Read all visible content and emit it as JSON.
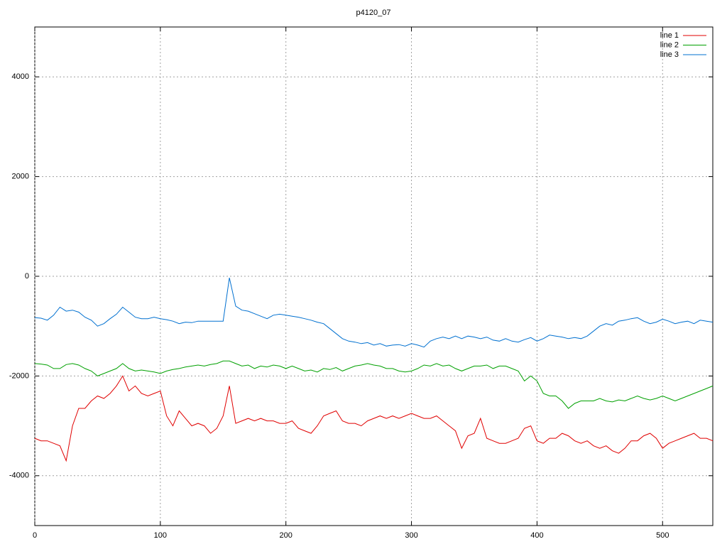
{
  "chart_data": {
    "type": "line",
    "title": "p4120_07",
    "x": [
      0,
      5,
      10,
      15,
      20,
      25,
      30,
      35,
      40,
      45,
      50,
      55,
      60,
      65,
      70,
      75,
      80,
      85,
      90,
      95,
      100,
      105,
      110,
      115,
      120,
      125,
      130,
      135,
      140,
      145,
      150,
      155,
      160,
      165,
      170,
      175,
      180,
      185,
      190,
      195,
      200,
      205,
      210,
      215,
      220,
      225,
      230,
      235,
      240,
      245,
      250,
      255,
      260,
      265,
      270,
      275,
      280,
      285,
      290,
      295,
      300,
      305,
      310,
      315,
      320,
      325,
      330,
      335,
      340,
      345,
      350,
      355,
      360,
      365,
      370,
      375,
      380,
      385,
      390,
      395,
      400,
      405,
      410,
      415,
      420,
      425,
      430,
      435,
      440,
      445,
      450,
      455,
      460,
      465,
      470,
      475,
      480,
      485,
      490,
      495,
      500,
      505,
      510,
      515,
      520,
      525,
      530,
      535,
      540
    ],
    "series": [
      {
        "name": "line 1",
        "color": "#e00000",
        "values": [
          -3250,
          -3300,
          -3300,
          -3350,
          -3400,
          -3700,
          -3000,
          -2650,
          -2650,
          -2500,
          -2400,
          -2450,
          -2350,
          -2200,
          -2000,
          -2300,
          -2200,
          -2350,
          -2400,
          -2350,
          -2300,
          -2800,
          -3000,
          -2700,
          -2850,
          -3000,
          -2950,
          -3000,
          -3150,
          -3050,
          -2800,
          -2200,
          -2950,
          -2900,
          -2850,
          -2900,
          -2850,
          -2900,
          -2900,
          -2950,
          -2950,
          -2900,
          -3050,
          -3100,
          -3150,
          -3000,
          -2800,
          -2750,
          -2700,
          -2900,
          -2950,
          -2950,
          -3000,
          -2900,
          -2850,
          -2800,
          -2850,
          -2800,
          -2850,
          -2800,
          -2750,
          -2800,
          -2850,
          -2850,
          -2800,
          -2900,
          -3000,
          -3100,
          -3450,
          -3200,
          -3150,
          -2850,
          -3250,
          -3300,
          -3350,
          -3350,
          -3300,
          -3250,
          -3050,
          -3000,
          -3300,
          -3350,
          -3250,
          -3250,
          -3150,
          -3200,
          -3300,
          -3350,
          -3300,
          -3400,
          -3450,
          -3400,
          -3500,
          -3550,
          -3450,
          -3300,
          -3300,
          -3200,
          -3150,
          -3250,
          -3450,
          -3350,
          -3300,
          -3250,
          -3200,
          -3150,
          -3250,
          -3250,
          -3300
        ]
      },
      {
        "name": "line 2",
        "color": "#00a000",
        "values": [
          -1750,
          -1760,
          -1780,
          -1850,
          -1850,
          -1770,
          -1750,
          -1780,
          -1850,
          -1900,
          -2000,
          -1950,
          -1900,
          -1850,
          -1750,
          -1850,
          -1900,
          -1880,
          -1900,
          -1920,
          -1950,
          -1900,
          -1870,
          -1850,
          -1820,
          -1800,
          -1780,
          -1800,
          -1770,
          -1750,
          -1700,
          -1700,
          -1750,
          -1800,
          -1780,
          -1850,
          -1800,
          -1820,
          -1780,
          -1800,
          -1850,
          -1800,
          -1850,
          -1900,
          -1880,
          -1920,
          -1850,
          -1870,
          -1830,
          -1900,
          -1850,
          -1800,
          -1780,
          -1750,
          -1780,
          -1800,
          -1850,
          -1850,
          -1900,
          -1920,
          -1900,
          -1850,
          -1780,
          -1800,
          -1750,
          -1800,
          -1780,
          -1850,
          -1900,
          -1850,
          -1800,
          -1800,
          -1780,
          -1850,
          -1800,
          -1800,
          -1850,
          -1900,
          -2100,
          -2000,
          -2100,
          -2350,
          -2400,
          -2400,
          -2500,
          -2650,
          -2550,
          -2500,
          -2500,
          -2500,
          -2450,
          -2500,
          -2520,
          -2480,
          -2500,
          -2450,
          -2400,
          -2450,
          -2480,
          -2450,
          -2400,
          -2450,
          -2500,
          -2450,
          -2400,
          -2350,
          -2300,
          -2250,
          -2200
        ]
      },
      {
        "name": "line 3",
        "color": "#0070d0",
        "values": [
          -830,
          -840,
          -880,
          -780,
          -620,
          -700,
          -680,
          -720,
          -820,
          -880,
          -1000,
          -950,
          -850,
          -760,
          -620,
          -720,
          -820,
          -850,
          -850,
          -820,
          -850,
          -870,
          -900,
          -950,
          -920,
          -930,
          -900,
          -900,
          -900,
          -900,
          -900,
          -30,
          -600,
          -680,
          -700,
          -750,
          -800,
          -850,
          -780,
          -760,
          -780,
          -800,
          -820,
          -850,
          -880,
          -920,
          -950,
          -1050,
          -1150,
          -1250,
          -1300,
          -1320,
          -1350,
          -1330,
          -1380,
          -1350,
          -1400,
          -1380,
          -1370,
          -1400,
          -1350,
          -1380,
          -1420,
          -1300,
          -1250,
          -1220,
          -1250,
          -1200,
          -1250,
          -1200,
          -1220,
          -1250,
          -1220,
          -1280,
          -1300,
          -1250,
          -1300,
          -1320,
          -1270,
          -1230,
          -1300,
          -1250,
          -1180,
          -1200,
          -1220,
          -1250,
          -1230,
          -1250,
          -1200,
          -1100,
          -1000,
          -950,
          -980,
          -900,
          -880,
          -850,
          -830,
          -900,
          -950,
          -920,
          -860,
          -900,
          -950,
          -920,
          -900,
          -950,
          -880,
          -900,
          -920
        ]
      }
    ],
    "xlim": [
      0,
      540
    ],
    "xticks": [
      0,
      100,
      200,
      300,
      400,
      500
    ],
    "ylim": [
      -5000,
      5000
    ],
    "yticks": [
      -4000,
      -2000,
      0,
      2000,
      4000
    ],
    "grid": true,
    "legend": "top-right"
  }
}
